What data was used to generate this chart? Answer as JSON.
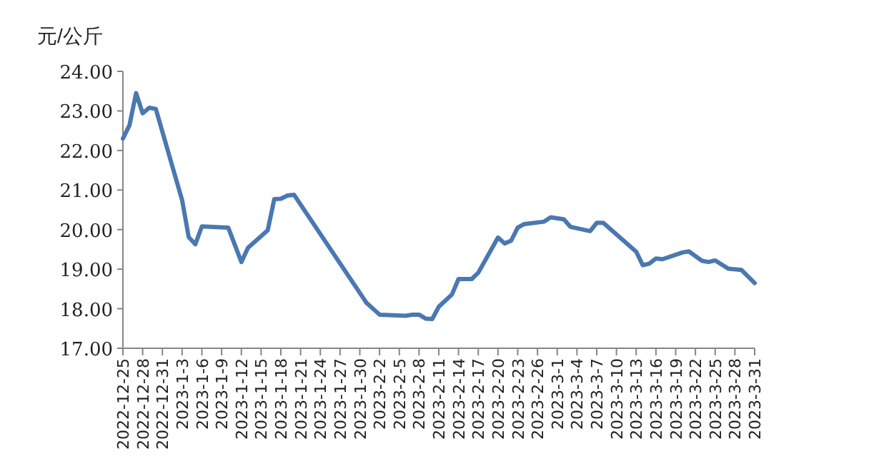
{
  "chart_data": {
    "type": "line",
    "ylabel": "元/公斤",
    "color": "#4a78b0",
    "xlim": [
      "2022-12-25",
      "2023-03-31"
    ],
    "ylim": [
      17,
      24
    ],
    "yticks": [
      {
        "value": 17,
        "label": "17.00"
      },
      {
        "value": 18,
        "label": "18.00"
      },
      {
        "value": 19,
        "label": "19.00"
      },
      {
        "value": 20,
        "label": "20.00"
      },
      {
        "value": 21,
        "label": "21.00"
      },
      {
        "value": 22,
        "label": "22.00"
      },
      {
        "value": 23,
        "label": "23.00"
      },
      {
        "value": 24,
        "label": "24.00"
      }
    ],
    "xticks": [
      {
        "value": "2022-12-25",
        "label": "2022-12-25"
      },
      {
        "value": "2022-12-28",
        "label": "2022-12-28"
      },
      {
        "value": "2022-12-31",
        "label": "2022-12-31"
      },
      {
        "value": "2023-01-03",
        "label": "2023-1-3"
      },
      {
        "value": "2023-01-06",
        "label": "2023-1-6"
      },
      {
        "value": "2023-01-09",
        "label": "2023-1-9"
      },
      {
        "value": "2023-01-12",
        "label": "2023-1-12"
      },
      {
        "value": "2023-01-15",
        "label": "2023-1-15"
      },
      {
        "value": "2023-01-18",
        "label": "2023-1-18"
      },
      {
        "value": "2023-01-21",
        "label": "2023-1-21"
      },
      {
        "value": "2023-01-24",
        "label": "2023-1-24"
      },
      {
        "value": "2023-01-27",
        "label": "2023-1-27"
      },
      {
        "value": "2023-01-30",
        "label": "2023-1-30"
      },
      {
        "value": "2023-02-02",
        "label": "2023-2-2"
      },
      {
        "value": "2023-02-05",
        "label": "2023-2-5"
      },
      {
        "value": "2023-02-08",
        "label": "2023-2-8"
      },
      {
        "value": "2023-02-11",
        "label": "2023-2-11"
      },
      {
        "value": "2023-02-14",
        "label": "2023-2-14"
      },
      {
        "value": "2023-02-17",
        "label": "2023-2-17"
      },
      {
        "value": "2023-02-20",
        "label": "2023-2-20"
      },
      {
        "value": "2023-02-23",
        "label": "2023-2-23"
      },
      {
        "value": "2023-02-26",
        "label": "2023-2-26"
      },
      {
        "value": "2023-03-01",
        "label": "2023-3-1"
      },
      {
        "value": "2023-03-04",
        "label": "2023-3-4"
      },
      {
        "value": "2023-03-07",
        "label": "2023-3-7"
      },
      {
        "value": "2023-03-10",
        "label": "2023-3-10"
      },
      {
        "value": "2023-03-13",
        "label": "2023-3-13"
      },
      {
        "value": "2023-03-16",
        "label": "2023-3-16"
      },
      {
        "value": "2023-03-19",
        "label": "2023-3-19"
      },
      {
        "value": "2023-03-22",
        "label": "2023-3-22"
      },
      {
        "value": "2023-03-25",
        "label": "2023-3-25"
      },
      {
        "value": "2023-03-28",
        "label": "2023-3-28"
      },
      {
        "value": "2023-03-31",
        "label": "2023-3-31"
      }
    ],
    "x": [
      "2022-12-25",
      "2022-12-26",
      "2022-12-27",
      "2022-12-28",
      "2022-12-29",
      "2022-12-30",
      "2023-01-03",
      "2023-01-04",
      "2023-01-05",
      "2023-01-06",
      "2023-01-10",
      "2023-01-12",
      "2023-01-13",
      "2023-01-16",
      "2023-01-17",
      "2023-01-18",
      "2023-01-19",
      "2023-01-20",
      "2023-01-31",
      "2023-02-02",
      "2023-02-06",
      "2023-02-07",
      "2023-02-08",
      "2023-02-09",
      "2023-02-10",
      "2023-02-11",
      "2023-02-13",
      "2023-02-14",
      "2023-02-16",
      "2023-02-17",
      "2023-02-20",
      "2023-02-21",
      "2023-02-22",
      "2023-02-23",
      "2023-02-24",
      "2023-02-27",
      "2023-02-28",
      "2023-03-02",
      "2023-03-03",
      "2023-03-06",
      "2023-03-07",
      "2023-03-08",
      "2023-03-13",
      "2023-03-14",
      "2023-03-15",
      "2023-03-16",
      "2023-03-17",
      "2023-03-20",
      "2023-03-21",
      "2023-03-23",
      "2023-03-24",
      "2023-03-25",
      "2023-03-27",
      "2023-03-29",
      "2023-03-31"
    ],
    "values": [
      22.3,
      22.64,
      23.45,
      22.94,
      23.08,
      23.05,
      20.74,
      19.81,
      19.63,
      20.08,
      20.05,
      19.18,
      19.54,
      19.98,
      20.77,
      20.78,
      20.86,
      20.88,
      18.15,
      17.85,
      17.82,
      17.85,
      17.85,
      17.75,
      17.74,
      18.05,
      18.36,
      18.75,
      18.75,
      18.91,
      19.8,
      19.65,
      19.72,
      20.05,
      20.14,
      20.2,
      20.31,
      20.26,
      20.07,
      19.96,
      20.17,
      20.17,
      19.44,
      19.1,
      19.14,
      19.27,
      19.25,
      19.42,
      19.45,
      19.21,
      19.18,
      19.22,
      19.01,
      18.98,
      18.65
    ]
  }
}
